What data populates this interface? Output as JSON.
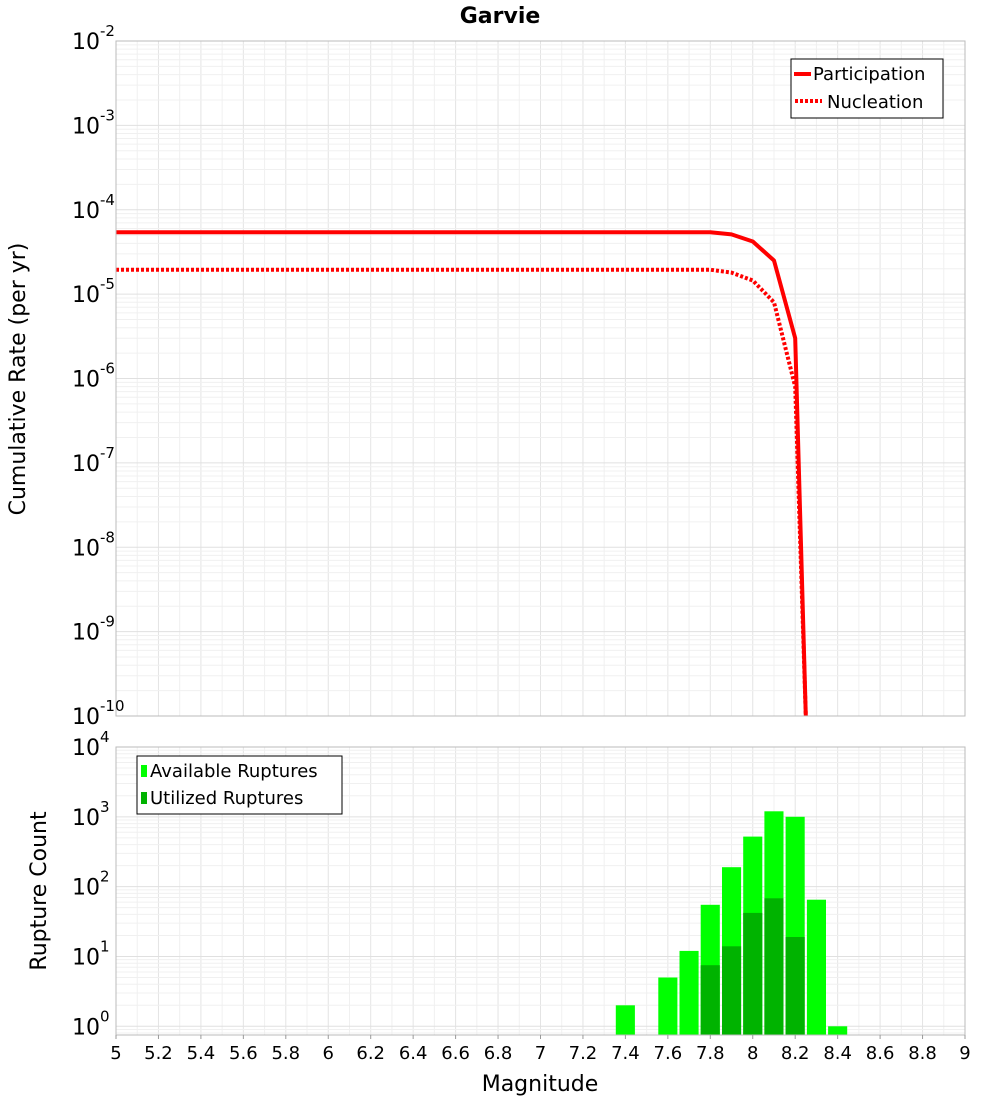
{
  "chart_data": [
    {
      "type": "line",
      "title": "Garvie",
      "xlabel": "",
      "ylabel": "Cumulative Rate (per yr)",
      "xlim": [
        5,
        9
      ],
      "ylim": [
        1e-10,
        0.01
      ],
      "yscale": "log",
      "grid": true,
      "legend_position": "top-right",
      "y_ticks": [
        {
          "base": "10",
          "exp": "-2",
          "value": 0.01
        },
        {
          "base": "10",
          "exp": "-3",
          "value": 0.001
        },
        {
          "base": "10",
          "exp": "-4",
          "value": 0.0001
        },
        {
          "base": "10",
          "exp": "-5",
          "value": 1e-05
        },
        {
          "base": "10",
          "exp": "-6",
          "value": 1e-06
        },
        {
          "base": "10",
          "exp": "-7",
          "value": 1e-07
        },
        {
          "base": "10",
          "exp": "-8",
          "value": 1e-08
        },
        {
          "base": "10",
          "exp": "-9",
          "value": 1e-09
        },
        {
          "base": "10",
          "exp": "-10",
          "value": 1e-10
        }
      ],
      "series": [
        {
          "name": "Participation",
          "color": "#ff0000",
          "style": "solid",
          "x": [
            5.0,
            7.8,
            7.9,
            8.0,
            8.1,
            8.2,
            8.25
          ],
          "y": [
            5.4e-05,
            5.4e-05,
            5.1e-05,
            4.2e-05,
            2.5e-05,
            3e-06,
            1e-10
          ]
        },
        {
          "name": "Nucleation",
          "color": "#ff0000",
          "style": "dotted",
          "x": [
            5.0,
            7.8,
            7.9,
            8.0,
            8.1,
            8.2,
            8.25
          ],
          "y": [
            1.95e-05,
            1.95e-05,
            1.8e-05,
            1.45e-05,
            8e-06,
            8e-07,
            1e-10
          ]
        }
      ]
    },
    {
      "type": "bar",
      "title": "",
      "xlabel": "Magnitude",
      "ylabel": "Rupture Count",
      "xlim": [
        5,
        9
      ],
      "ylim": [
        0.75,
        10000
      ],
      "yscale": "log",
      "grid": true,
      "legend_position": "top-left",
      "x_ticks": [
        "5",
        "5.2",
        "5.4",
        "5.6",
        "5.8",
        "6",
        "6.2",
        "6.4",
        "6.6",
        "6.8",
        "7",
        "7.2",
        "7.4",
        "7.6",
        "7.8",
        "8",
        "8.2",
        "8.4",
        "8.6",
        "8.8",
        "9"
      ],
      "y_ticks": [
        {
          "base": "10",
          "exp": "4",
          "value": 10000
        },
        {
          "base": "10",
          "exp": "3",
          "value": 1000
        },
        {
          "base": "10",
          "exp": "2",
          "value": 100
        },
        {
          "base": "10",
          "exp": "1",
          "value": 10
        },
        {
          "base": "10",
          "exp": "0",
          "value": 1
        }
      ],
      "bar_width": 0.09,
      "series": [
        {
          "name": "Available Ruptures",
          "color": "#00ff00",
          "x": [
            7.4,
            7.6,
            7.7,
            7.8,
            7.9,
            8.0,
            8.1,
            8.2,
            8.3,
            8.4
          ],
          "values": [
            2,
            5,
            12,
            55,
            190,
            520,
            1200,
            1000,
            65,
            1
          ]
        },
        {
          "name": "Utilized Ruptures",
          "color": "#00b300",
          "x": [
            7.8,
            7.9,
            8.0,
            8.1,
            8.2
          ],
          "values": [
            7.5,
            14,
            42,
            68,
            19
          ]
        }
      ]
    }
  ]
}
